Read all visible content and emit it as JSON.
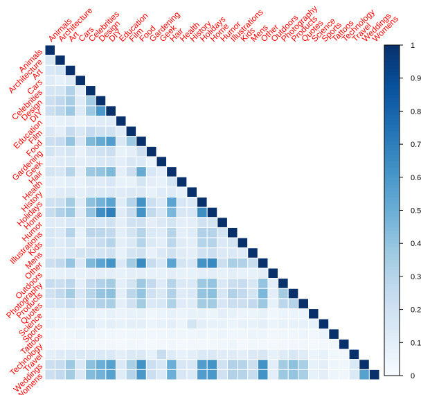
{
  "chart_data": {
    "type": "heatmap",
    "title": "",
    "xlabel": "",
    "ylabel": "",
    "categories": [
      "Animals",
      "Architecture",
      "Art",
      "Cars",
      "Celebrities",
      "Design",
      "DIY",
      "Education",
      "Film",
      "Food",
      "Gardening",
      "Geek",
      "Hair",
      "Health",
      "History",
      "Holidays",
      "Home",
      "Humor",
      "Illustrations",
      "Kids",
      "Mens",
      "Other",
      "Outdoors",
      "Photography",
      "Products",
      "Quotes",
      "Science",
      "Sports",
      "Tattoos",
      "Technology",
      "Travel",
      "Weddings",
      "Womens"
    ],
    "colorbar": {
      "ticks": [
        0,
        0.1,
        0.2,
        0.3,
        0.4,
        0.5,
        0.6,
        0.7,
        0.8,
        0.9,
        1
      ],
      "range": [
        0,
        1
      ],
      "low_color": "#f7fbff",
      "high_color": "#08306b"
    },
    "upper_triangle": "blank",
    "diagonal_value": 1,
    "label_color": "#ff0000",
    "lower_triangle_values": [
      [],
      [
        0.15
      ],
      [
        0.16,
        0.18
      ],
      [
        0.12,
        0.08,
        0.12
      ],
      [
        0.17,
        0.18,
        0.32,
        0.1
      ],
      [
        0.22,
        0.27,
        0.35,
        0.12,
        0.36
      ],
      [
        0.22,
        0.28,
        0.38,
        0.13,
        0.38,
        0.6
      ],
      [
        0.07,
        0.08,
        0.1,
        0.06,
        0.1,
        0.12,
        0.12
      ],
      [
        0.14,
        0.1,
        0.25,
        0.15,
        0.25,
        0.2,
        0.2,
        0.12
      ],
      [
        0.22,
        0.25,
        0.4,
        0.16,
        0.45,
        0.52,
        0.58,
        0.15,
        0.38
      ],
      [
        0.18,
        0.14,
        0.18,
        0.07,
        0.17,
        0.2,
        0.22,
        0.08,
        0.1,
        0.22
      ],
      [
        0.1,
        0.12,
        0.14,
        0.1,
        0.12,
        0.15,
        0.16,
        0.1,
        0.16,
        0.14,
        0.06
      ],
      [
        0.18,
        0.16,
        0.3,
        0.1,
        0.38,
        0.4,
        0.45,
        0.1,
        0.22,
        0.52,
        0.16,
        0.1
      ],
      [
        0.09,
        0.08,
        0.11,
        0.07,
        0.14,
        0.12,
        0.16,
        0.08,
        0.08,
        0.18,
        0.1,
        0.08,
        0.18
      ],
      [
        0.09,
        0.12,
        0.14,
        0.09,
        0.14,
        0.14,
        0.14,
        0.12,
        0.14,
        0.14,
        0.08,
        0.12,
        0.12,
        0.08
      ],
      [
        0.2,
        0.22,
        0.36,
        0.12,
        0.42,
        0.48,
        0.55,
        0.12,
        0.3,
        0.62,
        0.22,
        0.14,
        0.55,
        0.16,
        0.14
      ],
      [
        0.24,
        0.32,
        0.38,
        0.12,
        0.4,
        0.64,
        0.7,
        0.12,
        0.24,
        0.62,
        0.26,
        0.16,
        0.46,
        0.16,
        0.16,
        0.64
      ],
      [
        0.12,
        0.12,
        0.16,
        0.12,
        0.18,
        0.16,
        0.2,
        0.1,
        0.2,
        0.2,
        0.1,
        0.14,
        0.18,
        0.1,
        0.1,
        0.2,
        0.18
      ],
      [
        0.16,
        0.14,
        0.3,
        0.08,
        0.28,
        0.28,
        0.26,
        0.1,
        0.18,
        0.3,
        0.14,
        0.12,
        0.3,
        0.1,
        0.12,
        0.32,
        0.3,
        0.18
      ],
      [
        0.16,
        0.12,
        0.18,
        0.08,
        0.2,
        0.24,
        0.3,
        0.1,
        0.14,
        0.3,
        0.14,
        0.1,
        0.28,
        0.12,
        0.1,
        0.3,
        0.3,
        0.14,
        0.18
      ],
      [
        0.12,
        0.12,
        0.16,
        0.18,
        0.2,
        0.18,
        0.2,
        0.08,
        0.18,
        0.2,
        0.08,
        0.14,
        0.2,
        0.12,
        0.1,
        0.2,
        0.22,
        0.14,
        0.14,
        0.12
      ],
      [
        0.22,
        0.26,
        0.4,
        0.14,
        0.45,
        0.55,
        0.62,
        0.14,
        0.36,
        0.65,
        0.24,
        0.16,
        0.55,
        0.18,
        0.16,
        0.62,
        0.66,
        0.22,
        0.34,
        0.32,
        0.24
      ],
      [
        0.08,
        0.08,
        0.1,
        0.08,
        0.1,
        0.1,
        0.1,
        0.08,
        0.1,
        0.1,
        0.08,
        0.08,
        0.1,
        0.08,
        0.08,
        0.1,
        0.1,
        0.08,
        0.1,
        0.08,
        0.08,
        0.1
      ],
      [
        0.24,
        0.22,
        0.28,
        0.1,
        0.26,
        0.32,
        0.36,
        0.1,
        0.18,
        0.38,
        0.26,
        0.12,
        0.3,
        0.14,
        0.14,
        0.38,
        0.4,
        0.14,
        0.22,
        0.24,
        0.16,
        0.4,
        0.1
      ],
      [
        0.2,
        0.26,
        0.36,
        0.16,
        0.3,
        0.4,
        0.42,
        0.1,
        0.28,
        0.4,
        0.2,
        0.14,
        0.32,
        0.12,
        0.14,
        0.4,
        0.42,
        0.16,
        0.32,
        0.26,
        0.18,
        0.46,
        0.1,
        0.36
      ],
      [
        0.16,
        0.18,
        0.24,
        0.14,
        0.28,
        0.32,
        0.34,
        0.1,
        0.2,
        0.36,
        0.14,
        0.16,
        0.32,
        0.12,
        0.12,
        0.36,
        0.36,
        0.16,
        0.22,
        0.22,
        0.26,
        0.38,
        0.08,
        0.28,
        0.3
      ],
      [
        0.06,
        0.05,
        0.08,
        0.04,
        0.08,
        0.06,
        0.08,
        0.06,
        0.08,
        0.08,
        0.04,
        0.06,
        0.08,
        0.06,
        0.08,
        0.08,
        0.06,
        0.1,
        0.08,
        0.06,
        0.06,
        0.08,
        0.04,
        0.06,
        0.06,
        0.06
      ],
      [
        0.08,
        0.06,
        0.08,
        0.06,
        0.14,
        0.08,
        0.1,
        0.08,
        0.1,
        0.1,
        0.06,
        0.08,
        0.1,
        0.06,
        0.18,
        0.1,
        0.08,
        0.08,
        0.06,
        0.08,
        0.08,
        0.1,
        0.06,
        0.08,
        0.08,
        0.08,
        0.08
      ],
      [
        0.04,
        0.03,
        0.04,
        0.06,
        0.06,
        0.04,
        0.04,
        0.03,
        0.04,
        0.04,
        0.03,
        0.04,
        0.05,
        0.04,
        0.04,
        0.05,
        0.04,
        0.05,
        0.04,
        0.04,
        0.06,
        0.05,
        0.03,
        0.04,
        0.04,
        0.05,
        0.03,
        0.06
      ],
      [
        0.03,
        0.02,
        0.04,
        0.03,
        0.04,
        0.03,
        0.03,
        0.02,
        0.04,
        0.03,
        0.02,
        0.03,
        0.04,
        0.02,
        0.03,
        0.03,
        0.03,
        0.04,
        0.05,
        0.02,
        0.04,
        0.03,
        0.02,
        0.03,
        0.03,
        0.04,
        0.02,
        0.03,
        0.04
      ],
      [
        0.1,
        0.12,
        0.14,
        0.14,
        0.14,
        0.14,
        0.14,
        0.1,
        0.14,
        0.14,
        0.08,
        0.24,
        0.12,
        0.08,
        0.1,
        0.14,
        0.14,
        0.12,
        0.12,
        0.1,
        0.14,
        0.16,
        0.08,
        0.12,
        0.16,
        0.12,
        0.06,
        0.08,
        0.04,
        0.03
      ],
      [
        0.22,
        0.24,
        0.38,
        0.14,
        0.42,
        0.5,
        0.56,
        0.14,
        0.34,
        0.62,
        0.22,
        0.16,
        0.5,
        0.16,
        0.16,
        0.58,
        0.62,
        0.2,
        0.32,
        0.3,
        0.22,
        0.62,
        0.1,
        0.36,
        0.42,
        0.34,
        0.08,
        0.1,
        0.05,
        0.04,
        0.14
      ],
      [
        0.22,
        0.26,
        0.36,
        0.14,
        0.44,
        0.48,
        0.56,
        0.12,
        0.3,
        0.6,
        0.22,
        0.14,
        0.5,
        0.16,
        0.14,
        0.58,
        0.6,
        0.2,
        0.32,
        0.3,
        0.24,
        0.62,
        0.1,
        0.38,
        0.4,
        0.34,
        0.08,
        0.1,
        0.05,
        0.04,
        0.14,
        0.56
      ],
      [
        0.18,
        0.18,
        0.34,
        0.14,
        0.48,
        0.5,
        0.58,
        0.12,
        0.3,
        0.7,
        0.2,
        0.14,
        0.62,
        0.18,
        0.14,
        0.68,
        0.66,
        0.2,
        0.32,
        0.32,
        0.26,
        0.66,
        0.1,
        0.34,
        0.4,
        0.36,
        0.08,
        0.1,
        0.05,
        0.04,
        0.14,
        0.62,
        0.64
      ]
    ]
  }
}
